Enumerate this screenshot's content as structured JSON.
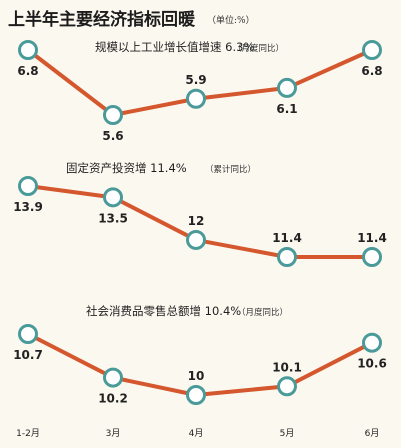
{
  "header": {
    "title": "上半年主要经济指标回暖",
    "unit": "（单位:%）"
  },
  "x_ticks": [
    "1-2月",
    "3月",
    "4月",
    "5月",
    "6月"
  ],
  "chart_data": [
    {
      "type": "line",
      "title": "规模以上工业增长值增速 6.3%",
      "note": "（月度同比）",
      "categories": [
        "1-2月",
        "3月",
        "4月",
        "5月",
        "6月"
      ],
      "values": [
        6.8,
        5.6,
        5.9,
        6.1,
        6.8
      ],
      "labels": [
        "6.8",
        "5.6",
        "5.9",
        "6.1",
        "6.8"
      ]
    },
    {
      "type": "line",
      "title": "固定资产投资增 11.4%",
      "note": "（累计同比）",
      "categories": [
        "1-2月",
        "3月",
        "4月",
        "5月",
        "6月"
      ],
      "values": [
        13.9,
        13.5,
        12,
        11.4,
        11.4
      ],
      "labels": [
        "13.9",
        "13.5",
        "12",
        "11.4",
        "11.4"
      ]
    },
    {
      "type": "line",
      "title": "社会消费品零售总额增 10.4%",
      "note": "（月度同比）",
      "categories": [
        "1-2月",
        "3月",
        "4月",
        "5月",
        "6月"
      ],
      "values": [
        10.7,
        10.2,
        10,
        10.1,
        10.6
      ],
      "labels": [
        "10.7",
        "10.2",
        "10",
        "10.1",
        "10.6"
      ]
    }
  ],
  "colors": {
    "line": "#d4572d",
    "marker_stroke": "#4a9a99",
    "marker_fill": "#ffffff",
    "background": "#fbf8f0"
  }
}
